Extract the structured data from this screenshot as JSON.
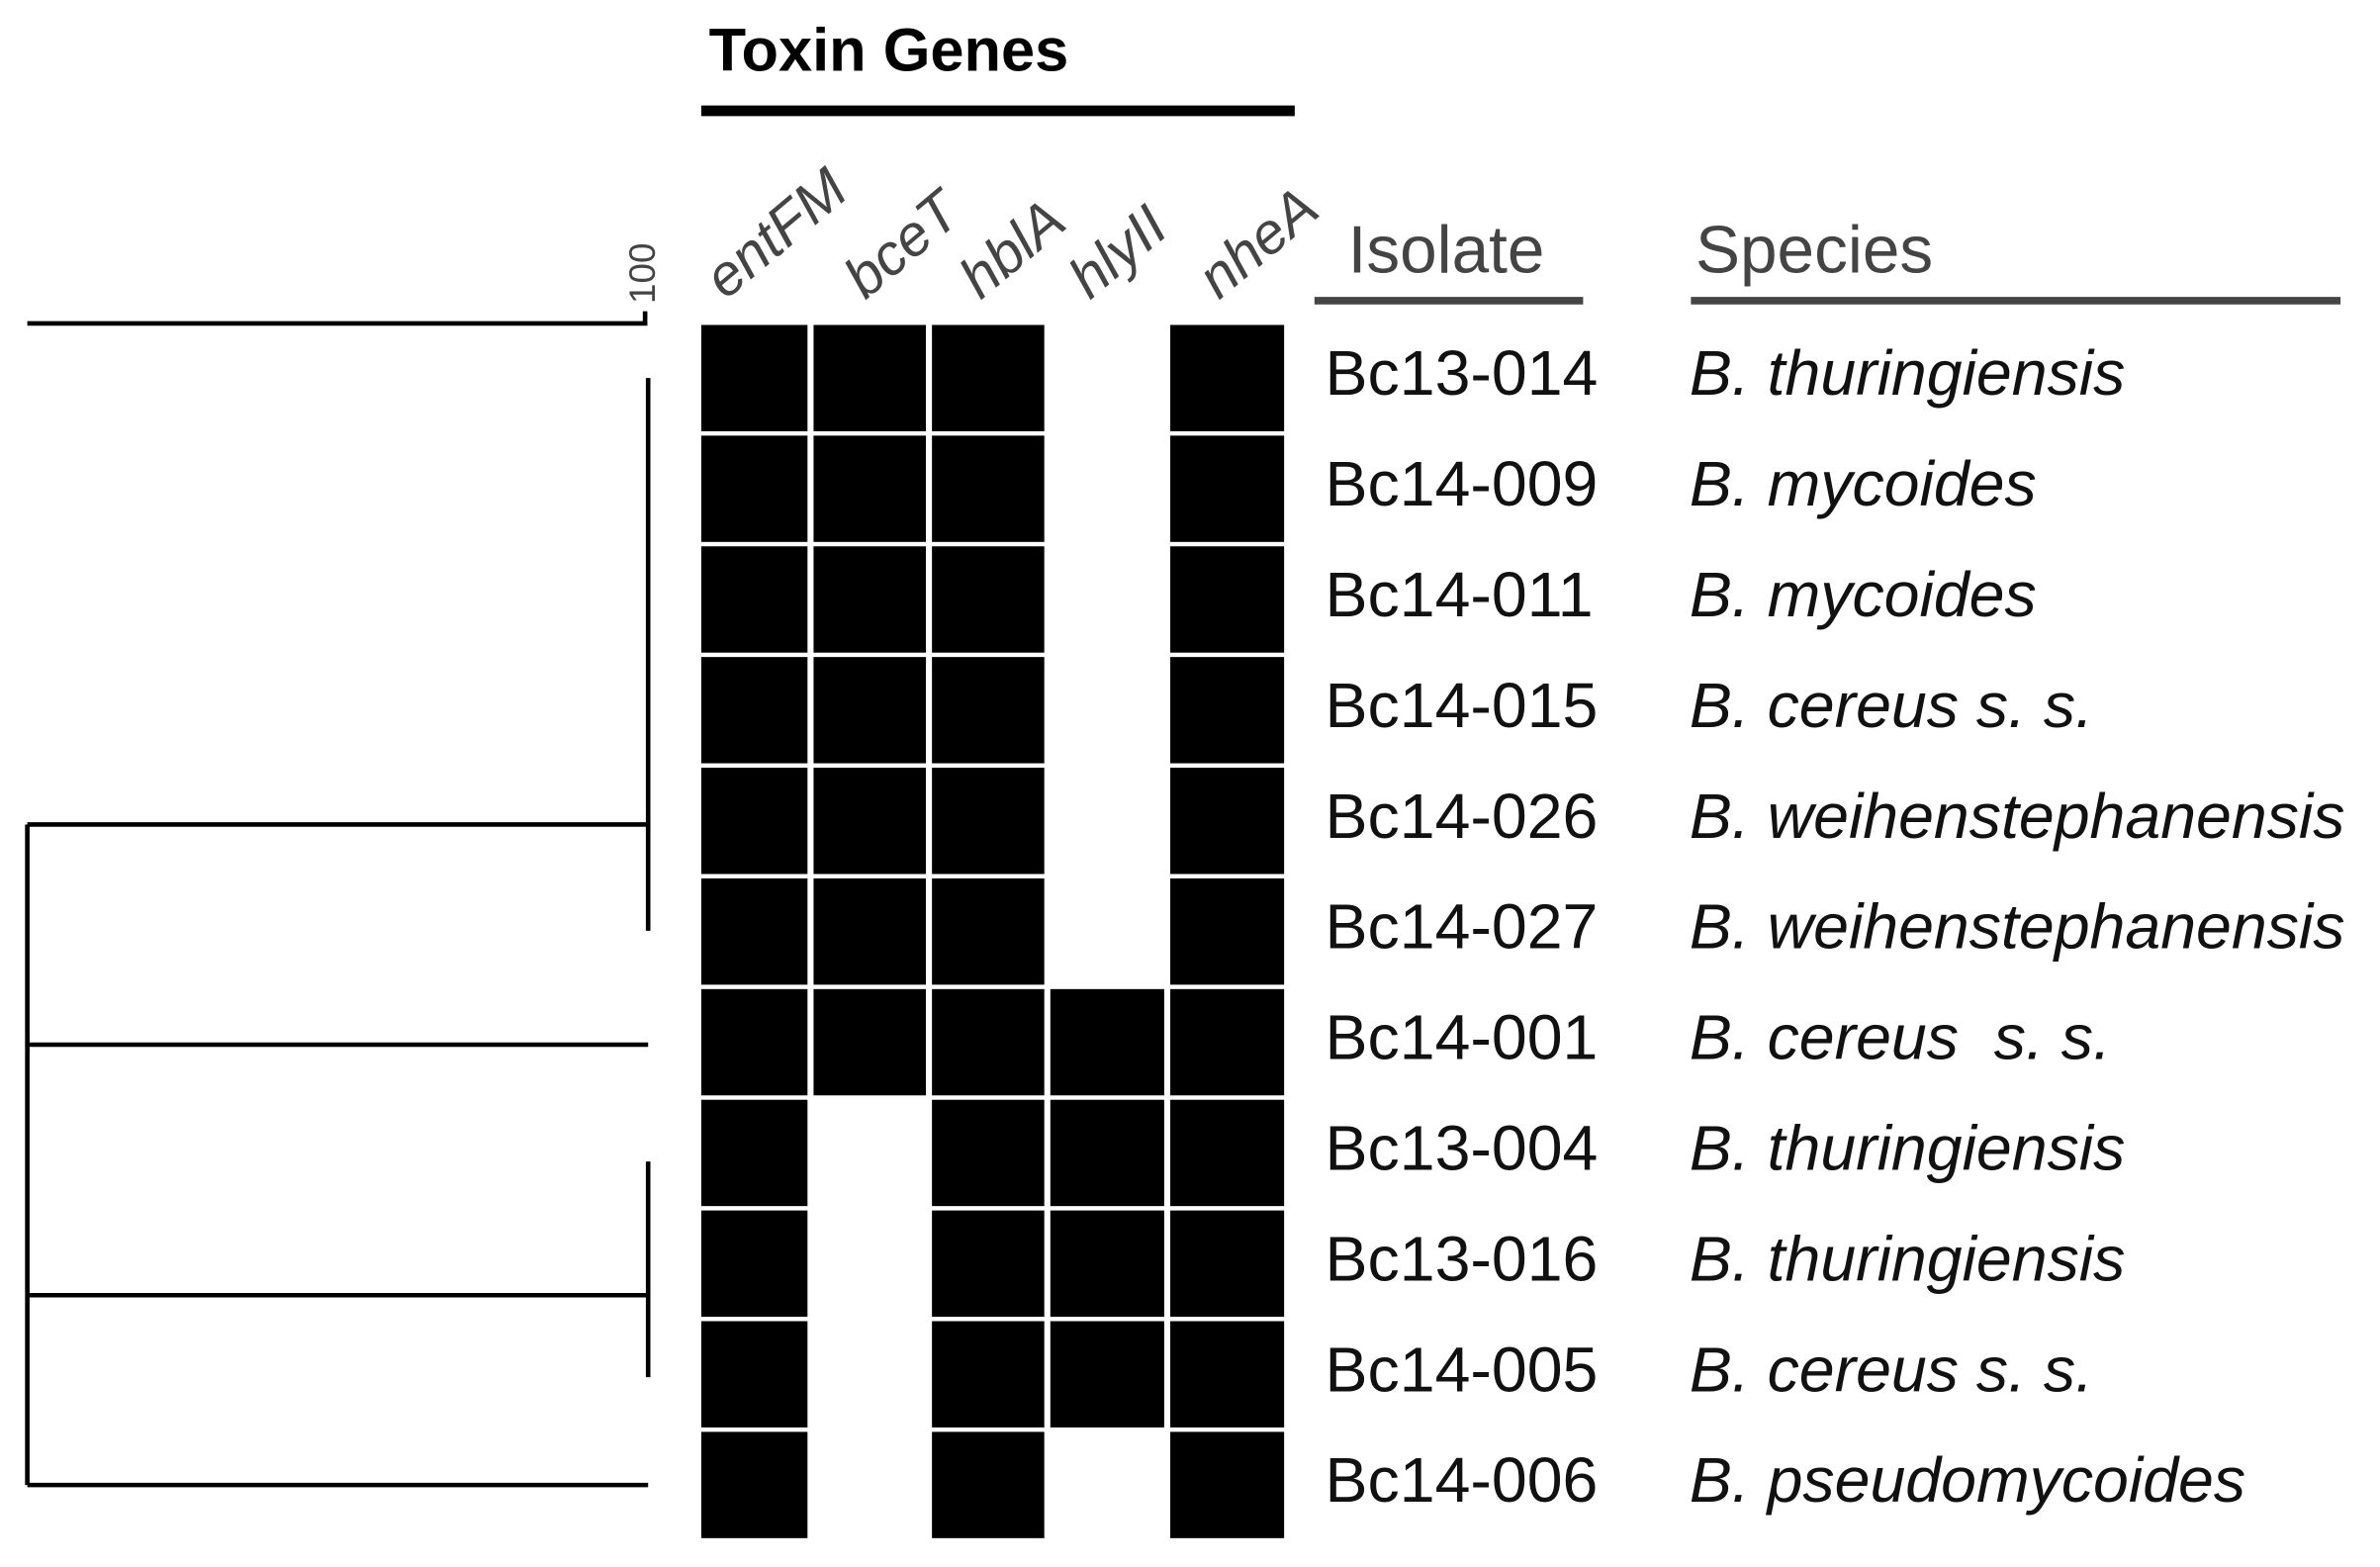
{
  "title": "Toxin Genes",
  "scale_label": "100",
  "genes": [
    "entFM",
    "bceT",
    "hblA",
    "hlyII",
    "nheA"
  ],
  "isolate_header": "Isolate",
  "species_header": "Species",
  "rows": [
    {
      "isolate": "Bc13-014",
      "species": "B. thuringiensis",
      "toxins": [
        1,
        1,
        1,
        0,
        1
      ]
    },
    {
      "isolate": "Bc14-009",
      "species": "B. mycoides",
      "toxins": [
        1,
        1,
        1,
        0,
        1
      ]
    },
    {
      "isolate": "Bc14-011",
      "species": "B. mycoides",
      "toxins": [
        1,
        1,
        1,
        0,
        1
      ]
    },
    {
      "isolate": "Bc14-015",
      "species": "B. cereus s. s.",
      "toxins": [
        1,
        1,
        1,
        0,
        1
      ]
    },
    {
      "isolate": "Bc14-026",
      "species": "B. weihenstephanensis",
      "toxins": [
        1,
        1,
        1,
        0,
        1
      ]
    },
    {
      "isolate": "Bc14-027",
      "species": "B. weihenstephanensis",
      "toxins": [
        1,
        1,
        1,
        0,
        1
      ]
    },
    {
      "isolate": "Bc14-001",
      "species": "B. cereus  s. s.",
      "toxins": [
        1,
        1,
        1,
        1,
        1
      ]
    },
    {
      "isolate": "Bc13-004",
      "species": "B. thuringiensis",
      "toxins": [
        1,
        0,
        1,
        1,
        1
      ]
    },
    {
      "isolate": "Bc13-016",
      "species": "B. thuringiensis",
      "toxins": [
        1,
        0,
        1,
        1,
        1
      ]
    },
    {
      "isolate": "Bc14-005",
      "species": "B. cereus s. s.",
      "toxins": [
        1,
        0,
        1,
        1,
        1
      ]
    },
    {
      "isolate": "Bc14-006",
      "species": "B. pseudomycoides",
      "toxins": [
        1,
        0,
        1,
        0,
        1
      ]
    }
  ]
}
